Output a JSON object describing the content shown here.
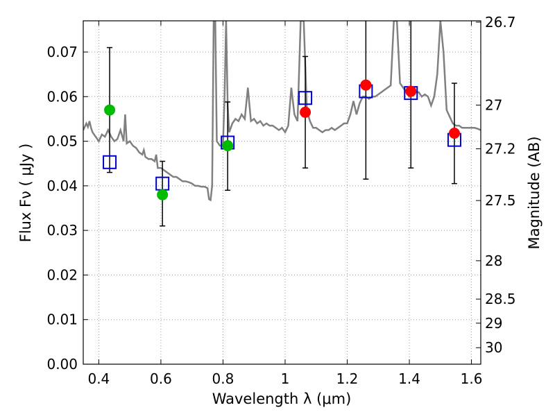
{
  "chart_data": {
    "type": "scatter",
    "xlabel": "Wavelength  λ (μm)",
    "ylabel": "Flux  Fν ( μJy )",
    "ylabel_right": "Magnitude (AB)",
    "xlim": [
      0.35,
      1.63
    ],
    "ylim": [
      0.0,
      0.077
    ],
    "grid": true,
    "x_ticks": [
      0.4,
      0.6,
      0.8,
      1.0,
      1.2,
      1.4,
      1.6
    ],
    "x_tick_labels": [
      "0.4",
      "0.6",
      "0.8",
      "1",
      "1.2",
      "1.4",
      "1.6"
    ],
    "y_ticks": [
      0.0,
      0.01,
      0.02,
      0.03,
      0.04,
      0.05,
      0.06,
      0.07
    ],
    "y_tick_labels": [
      "0.00",
      "0.01",
      "0.02",
      "0.03",
      "0.04",
      "0.05",
      "0.06",
      "0.07"
    ],
    "right_ticks": [
      {
        "label": "26.7",
        "flux": 0.0767
      },
      {
        "label": "27",
        "flux": 0.0581
      },
      {
        "label": "27.2",
        "flux": 0.0483
      },
      {
        "label": "27.5",
        "flux": 0.0367
      },
      {
        "label": "28",
        "flux": 0.0232
      },
      {
        "label": "28.5",
        "flux": 0.0146
      },
      {
        "label": "29",
        "flux": 0.0092
      },
      {
        "label": "30",
        "flux": 0.0037
      }
    ],
    "colors": {
      "model": "#808080",
      "model_points": "#0000cc",
      "obs_green": "#00bb00",
      "obs_red": "#ff0000",
      "errorbar": "#000000",
      "grid": "#999999"
    },
    "series": [
      {
        "kind": "model_spectrum",
        "x": [
          0.35,
          0.36,
          0.365,
          0.37,
          0.375,
          0.38,
          0.39,
          0.4,
          0.41,
          0.42,
          0.43,
          0.44,
          0.45,
          0.46,
          0.47,
          0.48,
          0.485,
          0.49,
          0.5,
          0.51,
          0.52,
          0.53,
          0.54,
          0.545,
          0.55,
          0.56,
          0.57,
          0.58,
          0.585,
          0.59,
          0.6,
          0.61,
          0.62,
          0.63,
          0.64,
          0.65,
          0.66,
          0.67,
          0.68,
          0.69,
          0.7,
          0.71,
          0.72,
          0.73,
          0.74,
          0.75,
          0.755,
          0.76,
          0.765,
          0.77,
          0.775,
          0.78,
          0.79,
          0.8,
          0.805,
          0.81,
          0.815,
          0.82,
          0.83,
          0.84,
          0.85,
          0.86,
          0.87,
          0.88,
          0.89,
          0.9,
          0.91,
          0.92,
          0.93,
          0.94,
          0.95,
          0.96,
          0.97,
          0.98,
          0.99,
          1.0,
          1.01,
          1.02,
          1.03,
          1.04,
          1.05,
          1.06,
          1.07,
          1.08,
          1.09,
          1.1,
          1.11,
          1.12,
          1.13,
          1.14,
          1.15,
          1.16,
          1.17,
          1.18,
          1.19,
          1.2,
          1.21,
          1.22,
          1.23,
          1.24,
          1.25,
          1.26,
          1.27,
          1.28,
          1.29,
          1.3,
          1.31,
          1.32,
          1.33,
          1.34,
          1.35,
          1.36,
          1.37,
          1.38,
          1.39,
          1.4,
          1.41,
          1.42,
          1.43,
          1.44,
          1.45,
          1.46,
          1.47,
          1.48,
          1.49,
          1.5,
          1.51,
          1.52,
          1.53,
          1.54,
          1.55,
          1.56,
          1.57,
          1.58,
          1.59,
          1.6,
          1.61,
          1.62,
          1.63
        ],
        "y": [
          0.0525,
          0.054,
          0.0532,
          0.0545,
          0.053,
          0.052,
          0.051,
          0.05,
          0.0515,
          0.051,
          0.0525,
          0.051,
          0.05,
          0.0505,
          0.0525,
          0.05,
          0.056,
          0.0495,
          0.05,
          0.049,
          0.0485,
          0.0475,
          0.047,
          0.048,
          0.0465,
          0.046,
          0.046,
          0.0455,
          0.047,
          0.044,
          0.044,
          0.0435,
          0.043,
          0.0425,
          0.042,
          0.042,
          0.0415,
          0.041,
          0.041,
          0.0408,
          0.0405,
          0.04,
          0.04,
          0.0398,
          0.0398,
          0.0395,
          0.037,
          0.0368,
          0.04,
          0.077,
          0.077,
          0.05,
          0.049,
          0.049,
          0.06,
          0.077,
          0.058,
          0.052,
          0.054,
          0.055,
          0.0545,
          0.056,
          0.055,
          0.062,
          0.0545,
          0.055,
          0.054,
          0.0545,
          0.0535,
          0.054,
          0.0535,
          0.0535,
          0.053,
          0.0525,
          0.053,
          0.052,
          0.0535,
          0.062,
          0.056,
          0.0545,
          0.077,
          0.077,
          0.057,
          0.0545,
          0.053,
          0.053,
          0.0525,
          0.052,
          0.0525,
          0.0525,
          0.053,
          0.0525,
          0.053,
          0.0535,
          0.054,
          0.054,
          0.056,
          0.059,
          0.056,
          0.0585,
          0.06,
          0.06,
          0.0595,
          0.06,
          0.06,
          0.0605,
          0.061,
          0.0615,
          0.062,
          0.0625,
          0.077,
          0.077,
          0.063,
          0.062,
          0.061,
          0.06,
          0.061,
          0.061,
          0.061,
          0.06,
          0.0605,
          0.06,
          0.058,
          0.06,
          0.065,
          0.077,
          0.07,
          0.057,
          0.0555,
          0.054,
          0.0535,
          0.0535,
          0.053,
          0.053,
          0.053,
          0.053,
          0.053,
          0.0528,
          0.0525
        ]
      },
      {
        "kind": "model_points",
        "x": [
          0.435,
          0.605,
          0.815,
          1.065,
          1.26,
          1.405,
          1.545
        ],
        "y": [
          0.0453,
          0.0405,
          0.0497,
          0.0597,
          0.0612,
          0.0608,
          0.0503
        ]
      },
      {
        "kind": "observed_green",
        "x": [
          0.435,
          0.605,
          0.815
        ],
        "y": [
          0.057,
          0.038,
          0.049
        ],
        "err_low": [
          0.043,
          0.031,
          0.039
        ],
        "err_high": [
          0.071,
          0.0455,
          0.0588
        ]
      },
      {
        "kind": "observed_red",
        "x": [
          1.065,
          1.26,
          1.405,
          1.545
        ],
        "y": [
          0.0565,
          0.0626,
          0.0612,
          0.0518
        ],
        "err_low": [
          0.044,
          0.0415,
          0.044,
          0.0405
        ],
        "err_high": [
          0.069,
          0.077,
          0.077,
          0.063
        ]
      }
    ]
  }
}
